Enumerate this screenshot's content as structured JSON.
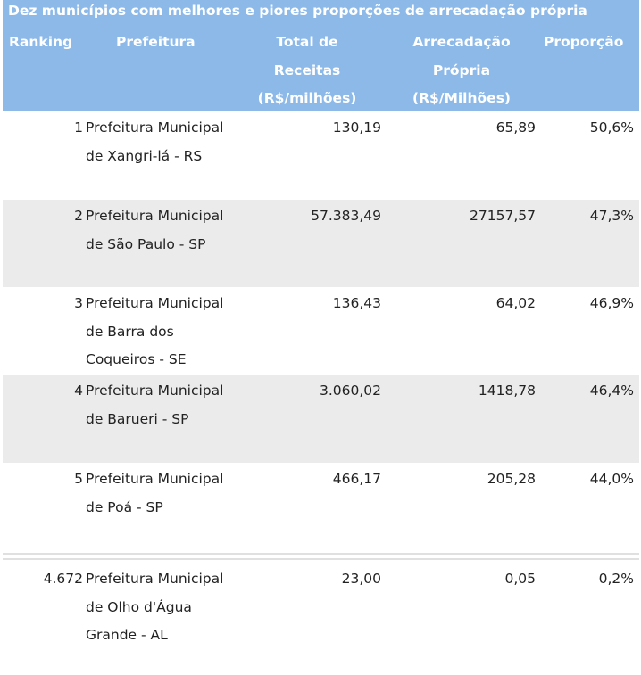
{
  "title": "Dez municípios com melhores e piores proporções de arrecadação própria",
  "headers": {
    "ranking": "Ranking",
    "prefeitura": "Prefeitura",
    "total_line1": "Total de",
    "total_line2": "Receitas",
    "total_line3": "(R$/milhões)",
    "arrec_line1": "Arrecadação",
    "arrec_line2": "Própria",
    "arrec_line3": "(R$/Milhões)",
    "proporcao": "Proporção"
  },
  "rows": [
    {
      "rank": "1",
      "name": "Prefeitura Municipal de Xangri-lá - RS",
      "total": "130,19",
      "arrec": "65,89",
      "prop": "50,6%"
    },
    {
      "rank": "2",
      "name": "Prefeitura Municipal de São Paulo - SP",
      "total": "57.383,49",
      "arrec": "27157,57",
      "prop": "47,3%"
    },
    {
      "rank": "3",
      "name": "Prefeitura Municipal de Barra dos Coqueiros - SE",
      "total": "136,43",
      "arrec": "64,02",
      "prop": "46,9%"
    },
    {
      "rank": "4",
      "name": "Prefeitura Municipal de Barueri - SP",
      "total": "3.060,02",
      "arrec": "1418,78",
      "prop": "46,4%"
    },
    {
      "rank": "5",
      "name": "Prefeitura Municipal de Poá - SP",
      "total": "466,17",
      "arrec": "205,28",
      "prop": "44,0%"
    }
  ],
  "bottom_rows": [
    {
      "rank": "4.672",
      "name": "Prefeitura Municipal de Olho d'Água Grande - AL",
      "total": "23,00",
      "arrec": "0,05",
      "prop": "0,2%"
    }
  ]
}
